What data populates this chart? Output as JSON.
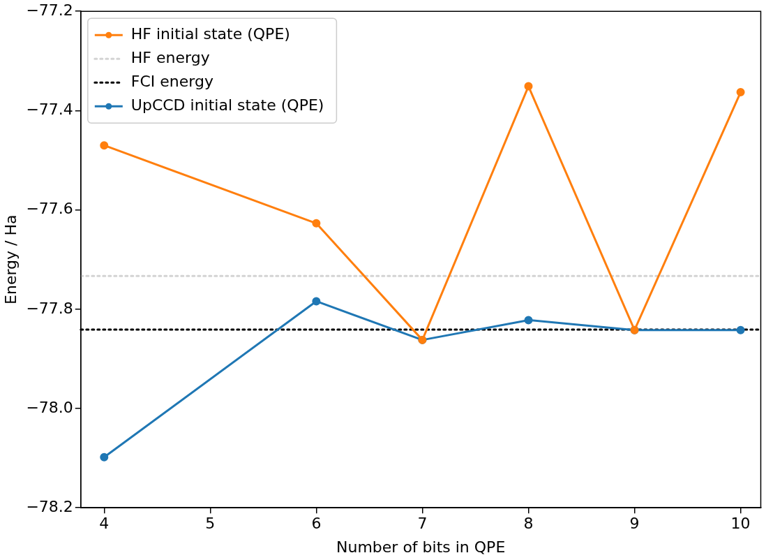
{
  "chart_data": {
    "type": "line",
    "xlabel": "Number of bits in QPE",
    "ylabel": "Energy / Ha",
    "x": [
      4,
      6,
      7,
      8,
      9,
      10
    ],
    "series": [
      {
        "name": "HF initial state (QPE)",
        "color": "#ff7f0e",
        "marker": "circle",
        "line_style": "solid",
        "values": [
          -77.47,
          -77.627,
          -77.862,
          -77.351,
          -77.842,
          -77.363
        ]
      },
      {
        "name": "UpCCD initial state (QPE)",
        "color": "#1f77b4",
        "marker": "circle",
        "line_style": "solid",
        "values": [
          -78.098,
          -77.784,
          -77.862,
          -77.822,
          -77.842,
          -77.842
        ]
      }
    ],
    "xlim": [
      3.78,
      10.19
    ],
    "xticks": [
      4,
      5,
      6,
      7,
      8,
      9,
      10
    ],
    "ylim": [
      -78.2,
      -77.2
    ],
    "yticks": [
      {
        "value": -78.2,
        "label": "−78.2"
      },
      {
        "value": -78.0,
        "label": "−78.0"
      },
      {
        "value": -77.8,
        "label": "−77.8"
      },
      {
        "value": -77.6,
        "label": "−77.6"
      },
      {
        "value": -77.4,
        "label": "−77.4"
      },
      {
        "value": -77.2,
        "label": "−77.2"
      }
    ],
    "ref_lines": [
      {
        "axis": "y",
        "value": -77.733,
        "label": "HF energy",
        "color": "#d3d3d3",
        "line_style": "dotted"
      },
      {
        "axis": "y",
        "value": -77.841,
        "label": "FCI energy",
        "color": "#000000",
        "line_style": "dotted"
      }
    ],
    "grid": false,
    "legend": "top left"
  }
}
